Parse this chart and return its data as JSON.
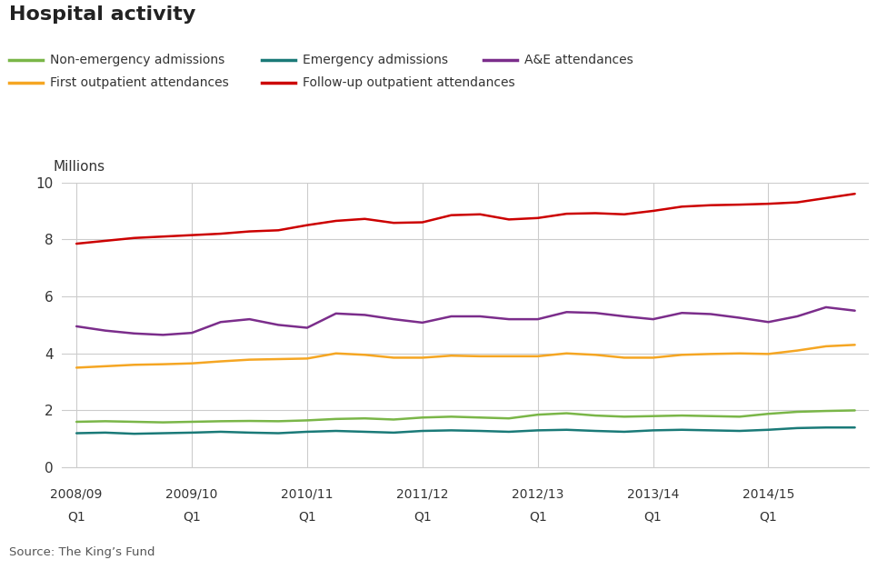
{
  "title": "Hospital activity",
  "ylabel": "Millions",
  "source": "Source: The King’s Fund",
  "ylim": [
    0,
    10
  ],
  "yticks": [
    0,
    2,
    4,
    6,
    8,
    10
  ],
  "background_color": "#ffffff",
  "grid_color": "#cccccc",
  "years": [
    "2008/09",
    "2009/10",
    "2010/11",
    "2011/12",
    "2012/13",
    "2013/14",
    "2014/15"
  ],
  "n_quarters": 28,
  "series": [
    {
      "label": "Non-emergency admissions",
      "color": "#7ab648",
      "linewidth": 1.8,
      "data": [
        1.6,
        1.62,
        1.6,
        1.58,
        1.6,
        1.62,
        1.63,
        1.62,
        1.65,
        1.7,
        1.72,
        1.68,
        1.75,
        1.78,
        1.75,
        1.72,
        1.85,
        1.9,
        1.82,
        1.78,
        1.8,
        1.82,
        1.8,
        1.78,
        1.88,
        1.95,
        1.98,
        2.0
      ]
    },
    {
      "label": "Emergency admissions",
      "color": "#1a7a78",
      "linewidth": 1.8,
      "data": [
        1.2,
        1.22,
        1.18,
        1.2,
        1.22,
        1.25,
        1.22,
        1.2,
        1.25,
        1.28,
        1.25,
        1.22,
        1.28,
        1.3,
        1.28,
        1.25,
        1.3,
        1.32,
        1.28,
        1.25,
        1.3,
        1.32,
        1.3,
        1.28,
        1.32,
        1.38,
        1.4,
        1.4
      ]
    },
    {
      "label": "A&E attendances",
      "color": "#7b2d8b",
      "linewidth": 1.8,
      "data": [
        4.95,
        4.8,
        4.7,
        4.65,
        4.72,
        5.1,
        5.2,
        5.0,
        4.9,
        5.4,
        5.35,
        5.2,
        5.08,
        5.3,
        5.3,
        5.2,
        5.2,
        5.45,
        5.42,
        5.3,
        5.2,
        5.42,
        5.38,
        5.25,
        5.1,
        5.3,
        5.62,
        5.5
      ]
    },
    {
      "label": "First outpatient attendances",
      "color": "#f5a623",
      "linewidth": 1.8,
      "data": [
        3.5,
        3.55,
        3.6,
        3.62,
        3.65,
        3.72,
        3.78,
        3.8,
        3.82,
        4.0,
        3.95,
        3.85,
        3.85,
        3.92,
        3.9,
        3.9,
        3.9,
        4.0,
        3.95,
        3.85,
        3.85,
        3.95,
        3.98,
        4.0,
        3.98,
        4.1,
        4.25,
        4.3
      ]
    },
    {
      "label": "Follow-up outpatient attendances",
      "color": "#cc0000",
      "linewidth": 1.8,
      "data": [
        7.85,
        7.95,
        8.05,
        8.1,
        8.15,
        8.2,
        8.28,
        8.32,
        8.5,
        8.65,
        8.72,
        8.58,
        8.6,
        8.85,
        8.88,
        8.7,
        8.75,
        8.9,
        8.92,
        8.88,
        9.0,
        9.15,
        9.2,
        9.22,
        9.25,
        9.3,
        9.45,
        9.6
      ]
    }
  ],
  "legend_row1": [
    {
      "label": "Non-emergency admissions",
      "color": "#7ab648"
    },
    {
      "label": "Emergency admissions",
      "color": "#1a7a78"
    },
    {
      "label": "A&E attendances",
      "color": "#7b2d8b"
    }
  ],
  "legend_row2": [
    {
      "label": "First outpatient attendances",
      "color": "#f5a623"
    },
    {
      "label": "Follow-up outpatient attendances",
      "color": "#cc0000"
    }
  ]
}
